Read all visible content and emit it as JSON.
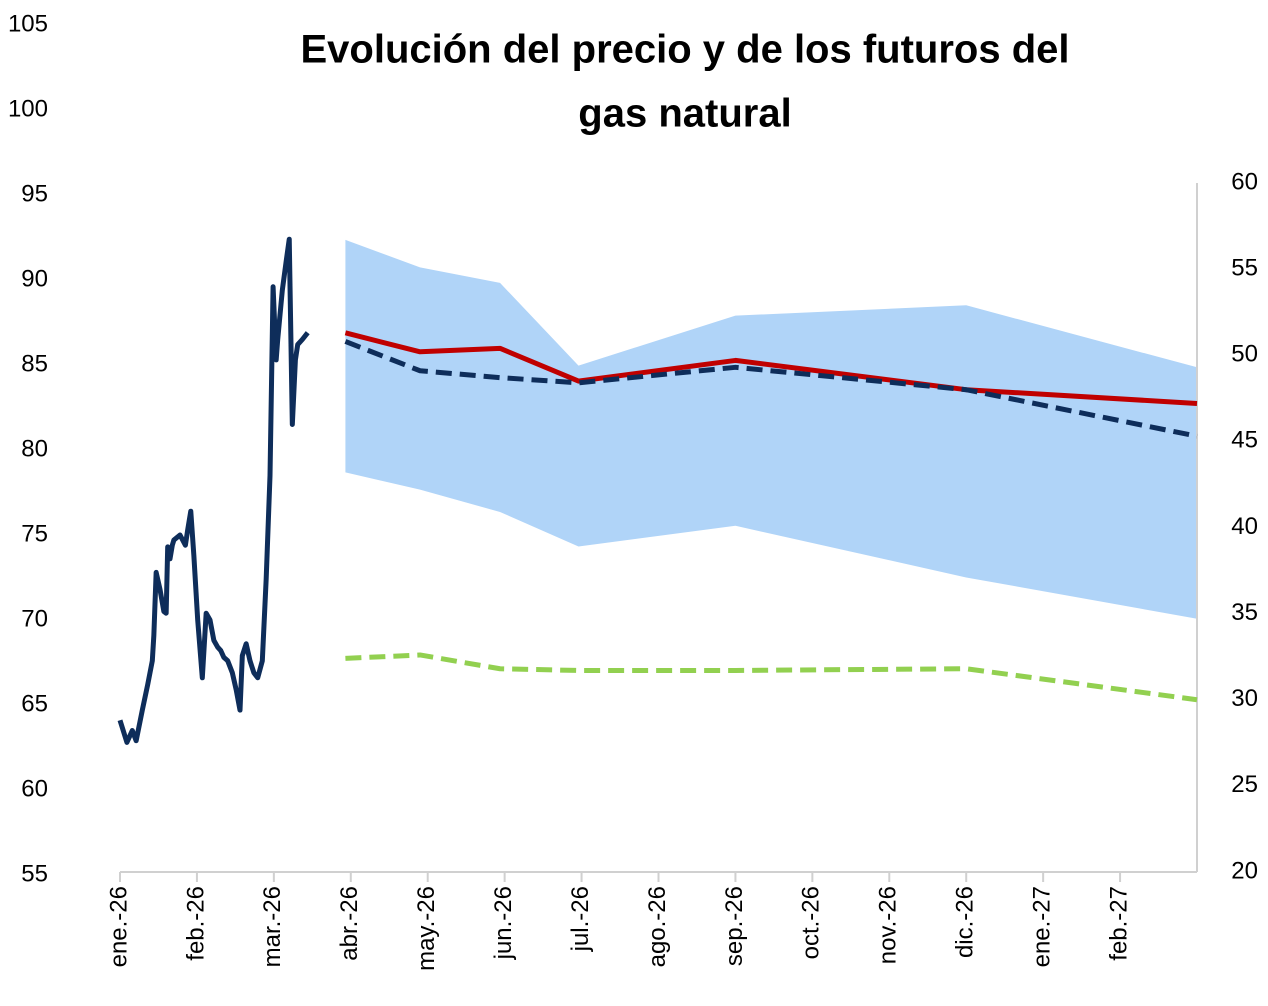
{
  "chart_data": {
    "type": "line",
    "title": [
      "Evolución del precio y de los futuros del",
      "gas natural"
    ],
    "xlim": [
      0,
      14
    ],
    "xticks": [
      {
        "value": 0,
        "label": "ene.-26"
      },
      {
        "value": 1,
        "label": "feb.-26"
      },
      {
        "value": 2,
        "label": "mar.-26"
      },
      {
        "value": 3,
        "label": "abr.-26"
      },
      {
        "value": 4,
        "label": "may.-26"
      },
      {
        "value": 5,
        "label": "jun.-26"
      },
      {
        "value": 6,
        "label": "jul.-26"
      },
      {
        "value": 7,
        "label": "ago.-26"
      },
      {
        "value": 8,
        "label": "sep.-26"
      },
      {
        "value": 9,
        "label": "oct.-26"
      },
      {
        "value": 10,
        "label": "nov.-26"
      },
      {
        "value": 11,
        "label": "dic.-26"
      },
      {
        "value": 12,
        "label": "ene.-27"
      },
      {
        "value": 13,
        "label": "feb.-27"
      }
    ],
    "ylim": [
      55,
      105
    ],
    "yticks": [
      55,
      60,
      65,
      70,
      75,
      80,
      85,
      90,
      95,
      100,
      105
    ],
    "y2lim": [
      20,
      60
    ],
    "y2ticks": [
      20,
      25,
      30,
      35,
      40,
      45,
      50,
      55,
      60
    ],
    "band": {
      "color": "#b0d4f8",
      "axis": "y2",
      "x": [
        2.93,
        3.9,
        4.94,
        5.96,
        8.0,
        11.0,
        14.0
      ],
      "upper": [
        56.7,
        55.1,
        54.2,
        49.4,
        52.3,
        52.9,
        49.3
      ],
      "lower": [
        43.2,
        42.2,
        40.9,
        38.9,
        40.1,
        37.1,
        34.7
      ]
    },
    "series": [
      {
        "color": "#0e2d5a",
        "style": "solid",
        "axis": "y",
        "x": [
          0,
          0.09,
          0.16,
          0.21,
          0.29,
          0.36,
          0.42,
          0.44,
          0.47,
          0.52,
          0.57,
          0.6,
          0.62,
          0.65,
          0.68,
          0.7,
          0.78,
          0.85,
          0.88,
          0.92,
          0.96,
          1.01,
          1.07,
          1.12,
          1.17,
          1.22,
          1.27,
          1.31,
          1.35,
          1.4,
          1.46,
          1.51,
          1.56,
          1.59,
          1.64,
          1.69,
          1.74,
          1.79,
          1.85,
          1.9,
          1.95,
          1.99,
          2.03,
          2.05,
          2.11,
          2.16,
          2.2,
          2.24,
          2.28,
          2.31,
          2.37,
          2.44
        ],
        "values": [
          64.1,
          62.8,
          63.5,
          62.9,
          64.7,
          66.2,
          67.6,
          69.1,
          72.8,
          71.8,
          70.5,
          70.4,
          74.3,
          73.6,
          74.4,
          74.7,
          75.0,
          74.4,
          75.3,
          76.4,
          73.8,
          70.0,
          66.6,
          70.4,
          70.0,
          68.8,
          68.4,
          68.2,
          67.8,
          67.6,
          66.9,
          65.9,
          64.7,
          67.9,
          68.6,
          67.6,
          66.9,
          66.6,
          67.6,
          72.4,
          78.5,
          89.6,
          85.3,
          86.5,
          89.4,
          91.1,
          92.4,
          81.5,
          85.3,
          86.2,
          86.5,
          86.9
        ]
      },
      {
        "color": "#c00000",
        "style": "solid",
        "axis": "y2",
        "x": [
          2.93,
          3.9,
          4.94,
          5.96,
          8.0,
          11.0,
          14.0
        ],
        "values": [
          51.3,
          50.2,
          50.4,
          48.5,
          49.7,
          48.0,
          47.2
        ]
      },
      {
        "color": "#0e2d5a",
        "style": "dashed",
        "axis": "y2",
        "x": [
          2.93,
          3.9,
          4.94,
          5.96,
          8.0,
          11.0,
          14.0
        ],
        "values": [
          50.8,
          49.1,
          48.7,
          48.4,
          49.3,
          48.0,
          45.3
        ]
      },
      {
        "color": "#92d050",
        "style": "dashed",
        "axis": "y2",
        "x": [
          2.93,
          3.9,
          4.94,
          5.96,
          8.0,
          11.0,
          14.0
        ],
        "values": [
          32.4,
          32.6,
          31.8,
          31.7,
          31.7,
          31.8,
          30.0
        ]
      }
    ]
  }
}
